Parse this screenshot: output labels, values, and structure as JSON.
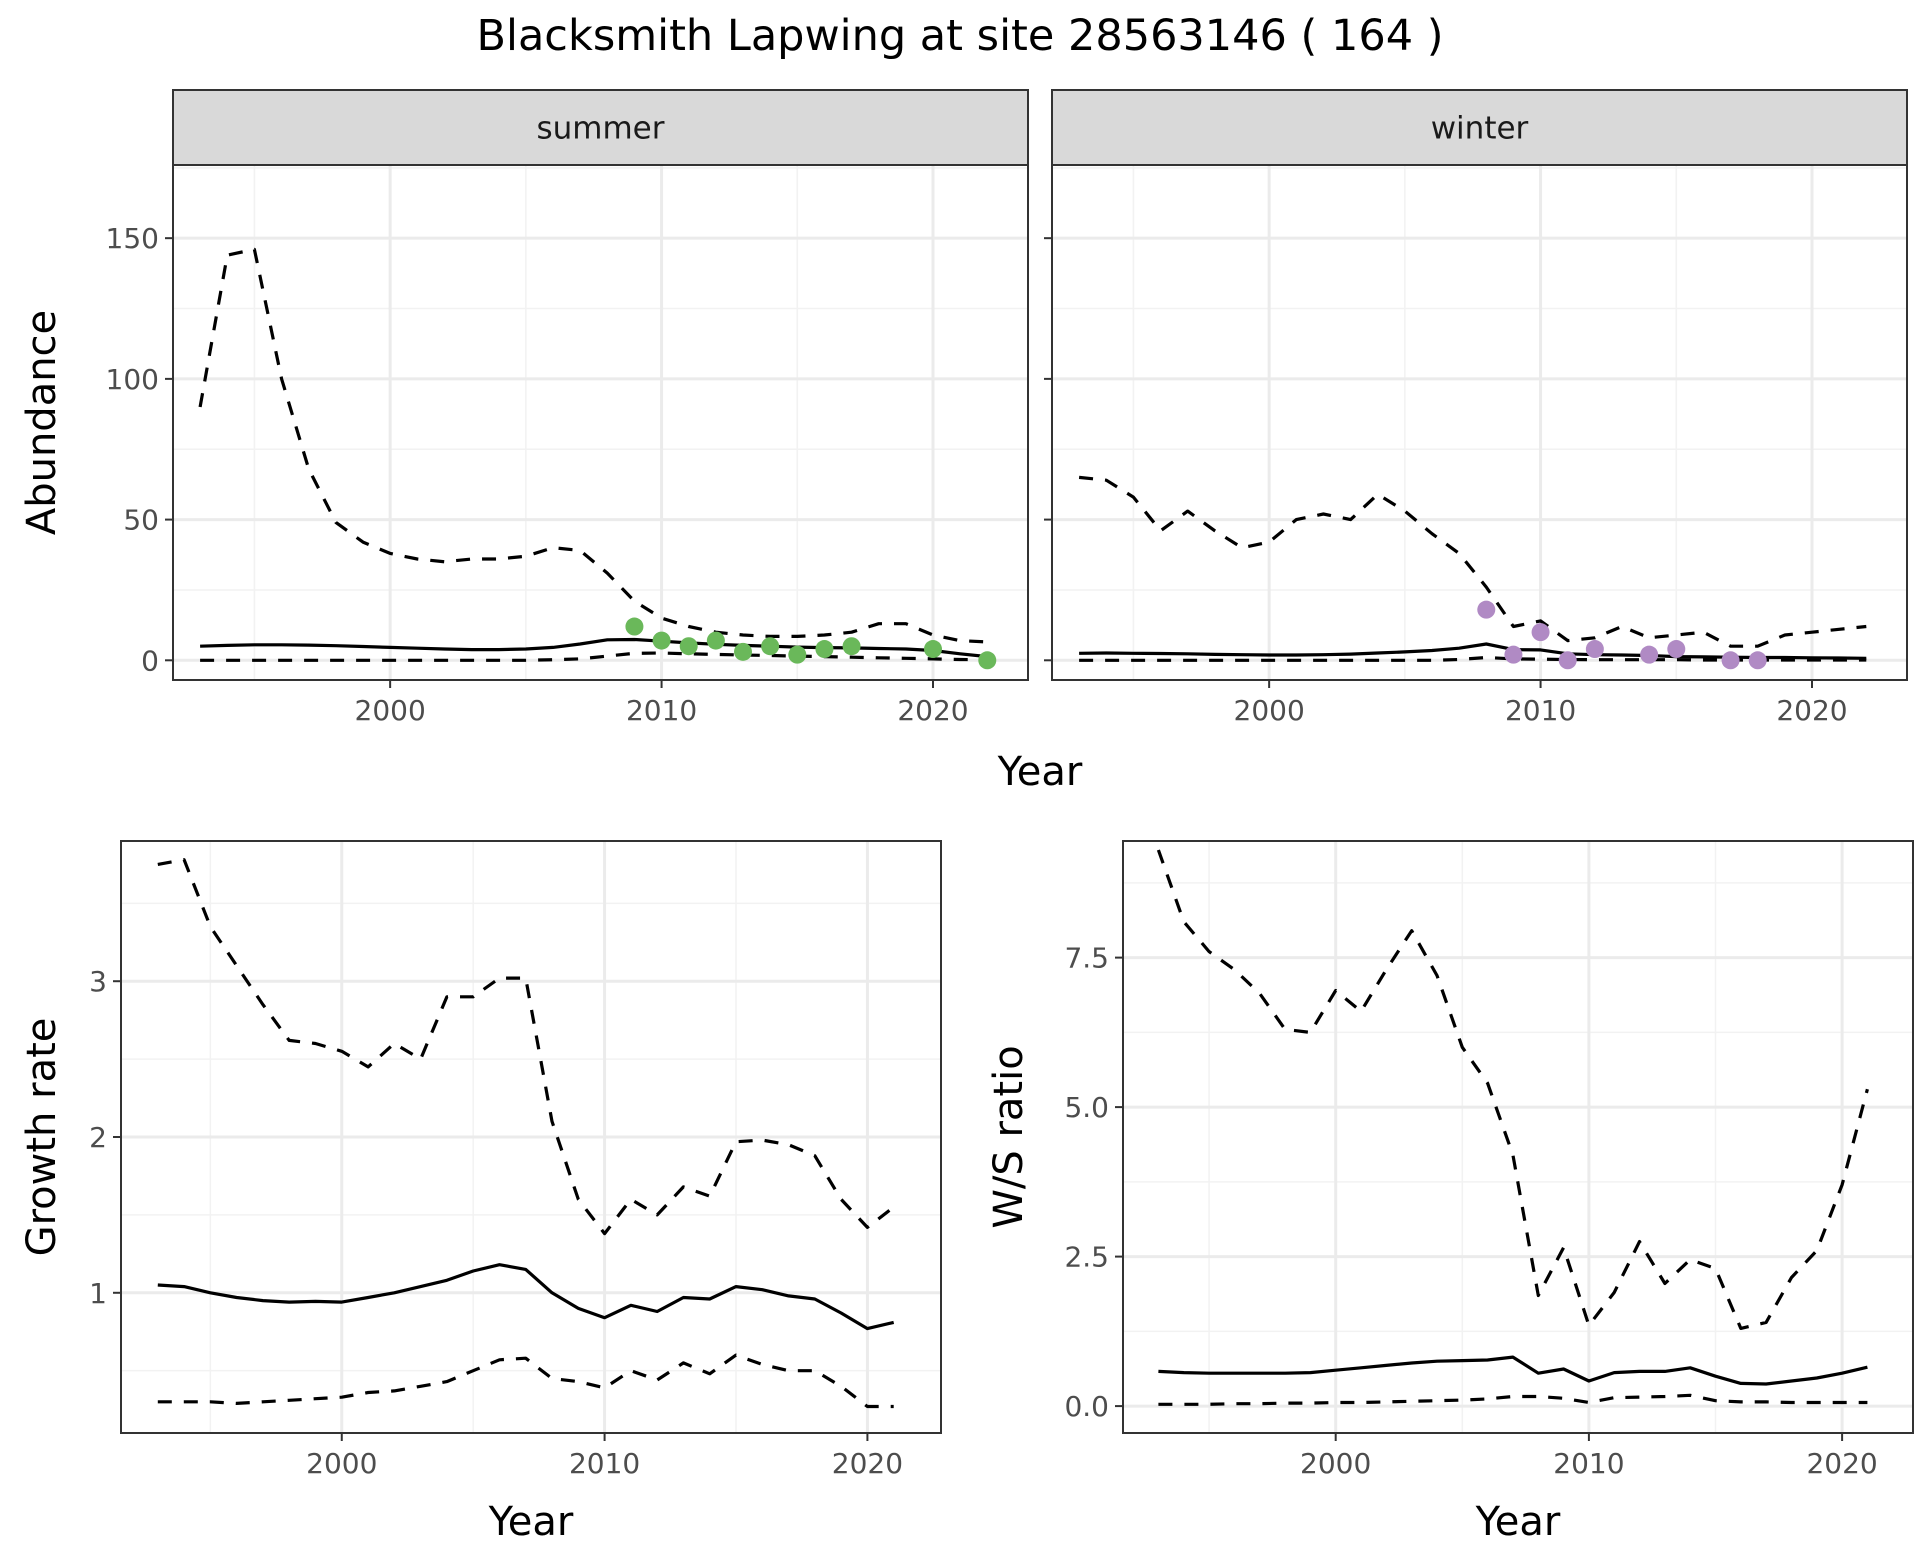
{
  "title": "Blacksmith Lapwing at site 28563146 ( 164 )",
  "colors": {
    "summer_points": "#6ab85a",
    "winter_points": "#b08ac4",
    "line": "#000000"
  },
  "chart_data": [
    {
      "type": "line",
      "facet": "summer",
      "strip_label": "summer",
      "xlabel": "Year",
      "ylabel": "Abundance",
      "xlim": [
        1992,
        2023.5
      ],
      "ylim": [
        -7,
        176
      ],
      "xticks": [
        2000,
        2010,
        2020
      ],
      "yticks": [
        0,
        50,
        100,
        150
      ],
      "series": [
        {
          "role": "estimate",
          "style": "solid",
          "x": [
            1993,
            1994,
            1995,
            1996,
            1997,
            1998,
            1999,
            2000,
            2001,
            2002,
            2003,
            2004,
            2005,
            2006,
            2007,
            2008,
            2009,
            2010,
            2011,
            2012,
            2013,
            2014,
            2015,
            2016,
            2017,
            2018,
            2019,
            2020,
            2021,
            2022
          ],
          "y": [
            5,
            5.3,
            5.5,
            5.5,
            5.4,
            5.2,
            4.9,
            4.6,
            4.3,
            4.0,
            3.8,
            3.8,
            4.0,
            4.6,
            5.8,
            7.3,
            7.4,
            6.8,
            6.2,
            5.7,
            5.3,
            5.0,
            4.7,
            4.5,
            4.4,
            4.2,
            4.0,
            3.5,
            2.3,
            1.3
          ]
        },
        {
          "role": "upper",
          "style": "dashed",
          "x": [
            1993,
            1994,
            1995,
            1996,
            1997,
            1998,
            1999,
            2000,
            2001,
            2002,
            2003,
            2004,
            2005,
            2006,
            2007,
            2008,
            2009,
            2010,
            2011,
            2012,
            2013,
            2014,
            2015,
            2016,
            2017,
            2018,
            2019,
            2020,
            2021,
            2022
          ],
          "y": [
            90,
            144,
            146,
            100,
            68,
            49,
            42,
            38,
            36,
            35,
            36,
            36,
            37,
            40,
            39,
            31,
            21,
            15,
            12,
            10,
            9,
            8.5,
            8.5,
            9,
            10,
            13,
            13,
            9,
            7,
            6.5
          ]
        },
        {
          "role": "lower",
          "style": "dashed",
          "x": [
            1993,
            1994,
            1995,
            1996,
            1997,
            1998,
            1999,
            2000,
            2001,
            2002,
            2003,
            2004,
            2005,
            2006,
            2007,
            2008,
            2009,
            2010,
            2011,
            2012,
            2013,
            2014,
            2015,
            2016,
            2017,
            2018,
            2019,
            2020,
            2021,
            2022
          ],
          "y": [
            0,
            0,
            0,
            0,
            0,
            0,
            0,
            0,
            0,
            0,
            0,
            0,
            0,
            0.2,
            0.5,
            1.5,
            2.5,
            2.6,
            2.3,
            2.1,
            1.9,
            1.7,
            1.5,
            1.3,
            1.1,
            0.9,
            0.7,
            0.5,
            0.3,
            0.2
          ]
        }
      ],
      "points": {
        "x": [
          2009,
          2010,
          2011,
          2012,
          2013,
          2014,
          2015,
          2016,
          2017,
          2020,
          2022
        ],
        "y": [
          12,
          7,
          5,
          7,
          3,
          5,
          2,
          4,
          5,
          4,
          0
        ]
      }
    },
    {
      "type": "line",
      "facet": "winter",
      "strip_label": "winter",
      "xlabel": "Year",
      "ylabel": "Abundance",
      "xlim": [
        1992,
        2023.5
      ],
      "ylim": [
        -7,
        176
      ],
      "xticks": [
        2000,
        2010,
        2020
      ],
      "yticks": [
        0,
        50,
        100,
        150
      ],
      "series": [
        {
          "role": "estimate",
          "style": "solid",
          "x": [
            1993,
            1994,
            1995,
            1996,
            1997,
            1998,
            1999,
            2000,
            2001,
            2002,
            2003,
            2004,
            2005,
            2006,
            2007,
            2008,
            2009,
            2010,
            2011,
            2012,
            2013,
            2014,
            2015,
            2016,
            2017,
            2018,
            2019,
            2020,
            2021,
            2022
          ],
          "y": [
            2.5,
            2.6,
            2.5,
            2.4,
            2.3,
            2.1,
            2.0,
            1.9,
            1.9,
            2.0,
            2.2,
            2.6,
            3.0,
            3.5,
            4.3,
            5.8,
            3.8,
            3.7,
            2.3,
            2.0,
            1.9,
            1.7,
            1.3,
            1.2,
            1.1,
            1.0,
            1.0,
            0.9,
            0.8,
            0.7
          ]
        },
        {
          "role": "upper",
          "style": "dashed",
          "x": [
            1993,
            1994,
            1995,
            1996,
            1997,
            1998,
            1999,
            2000,
            2001,
            2002,
            2003,
            2004,
            2005,
            2006,
            2007,
            2008,
            2009,
            2010,
            2011,
            2012,
            2013,
            2014,
            2015,
            2016,
            2017,
            2018,
            2019,
            2020,
            2021,
            2022
          ],
          "y": [
            65,
            64,
            58,
            46,
            53,
            46,
            40,
            42,
            50,
            52,
            50,
            59,
            53,
            45,
            38,
            26,
            12,
            14,
            7,
            8,
            12,
            8,
            9,
            10,
            5,
            5,
            9,
            10,
            11,
            12
          ]
        },
        {
          "role": "lower",
          "style": "dashed",
          "x": [
            1993,
            1994,
            1995,
            1996,
            1997,
            1998,
            1999,
            2000,
            2001,
            2002,
            2003,
            2004,
            2005,
            2006,
            2007,
            2008,
            2009,
            2010,
            2011,
            2012,
            2013,
            2014,
            2015,
            2016,
            2017,
            2018,
            2019,
            2020,
            2021,
            2022
          ],
          "y": [
            0,
            0,
            0,
            0,
            0,
            0,
            0,
            0,
            0,
            0,
            0,
            0,
            0,
            0,
            0.3,
            1.0,
            0.5,
            0.4,
            0.3,
            0.2,
            0.2,
            0.2,
            0.2,
            0.1,
            0.1,
            0.1,
            0.1,
            0.1,
            0.1,
            0.1
          ]
        }
      ],
      "points": {
        "x": [
          2008,
          2009,
          2010,
          2011,
          2012,
          2014,
          2015,
          2017,
          2018
        ],
        "y": [
          18,
          2,
          10,
          0,
          4,
          2,
          4,
          0,
          0
        ]
      }
    },
    {
      "type": "line",
      "facet": "growth",
      "xlabel": "Year",
      "ylabel": "Growth rate",
      "xlim": [
        1991.6,
        2022.8
      ],
      "ylim": [
        0.1,
        3.9
      ],
      "xticks": [
        2000,
        2010,
        2020
      ],
      "yticks": [
        1,
        2,
        3
      ],
      "series": [
        {
          "role": "estimate",
          "style": "solid",
          "x": [
            1993,
            1994,
            1995,
            1996,
            1997,
            1998,
            1999,
            2000,
            2001,
            2002,
            2003,
            2004,
            2005,
            2006,
            2007,
            2008,
            2009,
            2010,
            2011,
            2012,
            2013,
            2014,
            2015,
            2016,
            2017,
            2018,
            2019,
            2020,
            2021
          ],
          "y": [
            1.05,
            1.04,
            1.0,
            0.97,
            0.95,
            0.94,
            0.945,
            0.94,
            0.97,
            1.0,
            1.04,
            1.08,
            1.14,
            1.18,
            1.15,
            1.0,
            0.9,
            0.84,
            0.92,
            0.88,
            0.97,
            0.96,
            1.04,
            1.02,
            0.98,
            0.96,
            0.87,
            0.77,
            0.81
          ]
        },
        {
          "role": "upper",
          "style": "dashed",
          "x": [
            1993,
            1994,
            1995,
            1996,
            1997,
            1998,
            1999,
            2000,
            2001,
            2002,
            2003,
            2004,
            2005,
            2006,
            2007,
            2008,
            2009,
            2010,
            2011,
            2012,
            2013,
            2014,
            2015,
            2016,
            2017,
            2018,
            2019,
            2020,
            2021
          ],
          "y": [
            3.75,
            3.78,
            3.35,
            3.1,
            2.85,
            2.62,
            2.6,
            2.55,
            2.45,
            2.6,
            2.5,
            2.9,
            2.9,
            3.02,
            3.02,
            2.1,
            1.6,
            1.38,
            1.6,
            1.5,
            1.68,
            1.62,
            1.97,
            1.98,
            1.95,
            1.88,
            1.6,
            1.42,
            1.55
          ]
        },
        {
          "role": "lower",
          "style": "dashed",
          "x": [
            1993,
            1994,
            1995,
            1996,
            1997,
            1998,
            1999,
            2000,
            2001,
            2002,
            2003,
            2004,
            2005,
            2006,
            2007,
            2008,
            2009,
            2010,
            2011,
            2012,
            2013,
            2014,
            2015,
            2016,
            2017,
            2018,
            2019,
            2020,
            2021
          ],
          "y": [
            0.3,
            0.3,
            0.3,
            0.29,
            0.3,
            0.31,
            0.32,
            0.33,
            0.36,
            0.37,
            0.4,
            0.43,
            0.5,
            0.57,
            0.58,
            0.45,
            0.43,
            0.39,
            0.5,
            0.44,
            0.55,
            0.48,
            0.6,
            0.54,
            0.5,
            0.5,
            0.4,
            0.27,
            0.27
          ]
        }
      ]
    },
    {
      "type": "line",
      "facet": "ratio",
      "xlabel": "Year",
      "ylabel": "W/S ratio",
      "xlim": [
        1991.6,
        2022.8
      ],
      "ylim": [
        -0.45,
        9.45
      ],
      "xticks": [
        2000,
        2010,
        2020
      ],
      "yticks": [
        0.0,
        2.5,
        5.0,
        7.5
      ],
      "ytick_labels": [
        "0.0",
        "2.5",
        "5.0",
        "7.5"
      ],
      "series": [
        {
          "role": "estimate",
          "style": "solid",
          "x": [
            1993,
            1994,
            1995,
            1996,
            1997,
            1998,
            1999,
            2000,
            2001,
            2002,
            2003,
            2004,
            2005,
            2006,
            2007,
            2008,
            2009,
            2010,
            2011,
            2012,
            2013,
            2014,
            2015,
            2016,
            2017,
            2018,
            2019,
            2020,
            2021
          ],
          "y": [
            0.58,
            0.56,
            0.55,
            0.55,
            0.55,
            0.55,
            0.56,
            0.6,
            0.64,
            0.68,
            0.72,
            0.75,
            0.76,
            0.77,
            0.82,
            0.55,
            0.62,
            0.42,
            0.56,
            0.58,
            0.58,
            0.64,
            0.5,
            0.38,
            0.37,
            0.42,
            0.47,
            0.55,
            0.65
          ]
        },
        {
          "role": "upper",
          "style": "dashed",
          "x": [
            1993,
            1994,
            1995,
            1996,
            1997,
            1998,
            1999,
            2000,
            2001,
            2002,
            2003,
            2004,
            2005,
            2006,
            2007,
            2008,
            2009,
            2010,
            2011,
            2012,
            2013,
            2014,
            2015,
            2016,
            2017,
            2018,
            2019,
            2020,
            2021
          ],
          "y": [
            9.3,
            8.1,
            7.6,
            7.3,
            6.9,
            6.3,
            6.25,
            6.95,
            6.6,
            7.3,
            7.95,
            7.2,
            6.0,
            5.4,
            4.2,
            1.85,
            2.65,
            1.35,
            1.9,
            2.75,
            2.05,
            2.45,
            2.3,
            1.3,
            1.4,
            2.15,
            2.6,
            3.7,
            5.3
          ]
        },
        {
          "role": "lower",
          "style": "dashed",
          "x": [
            1993,
            1994,
            1995,
            1996,
            1997,
            1998,
            1999,
            2000,
            2001,
            2002,
            2003,
            2004,
            2005,
            2006,
            2007,
            2008,
            2009,
            2010,
            2011,
            2012,
            2013,
            2014,
            2015,
            2016,
            2017,
            2018,
            2019,
            2020,
            2021
          ],
          "y": [
            0.03,
            0.03,
            0.03,
            0.04,
            0.04,
            0.05,
            0.05,
            0.06,
            0.06,
            0.07,
            0.08,
            0.09,
            0.1,
            0.12,
            0.16,
            0.16,
            0.13,
            0.06,
            0.14,
            0.15,
            0.16,
            0.18,
            0.09,
            0.07,
            0.07,
            0.06,
            0.06,
            0.06,
            0.06
          ]
        }
      ]
    }
  ]
}
